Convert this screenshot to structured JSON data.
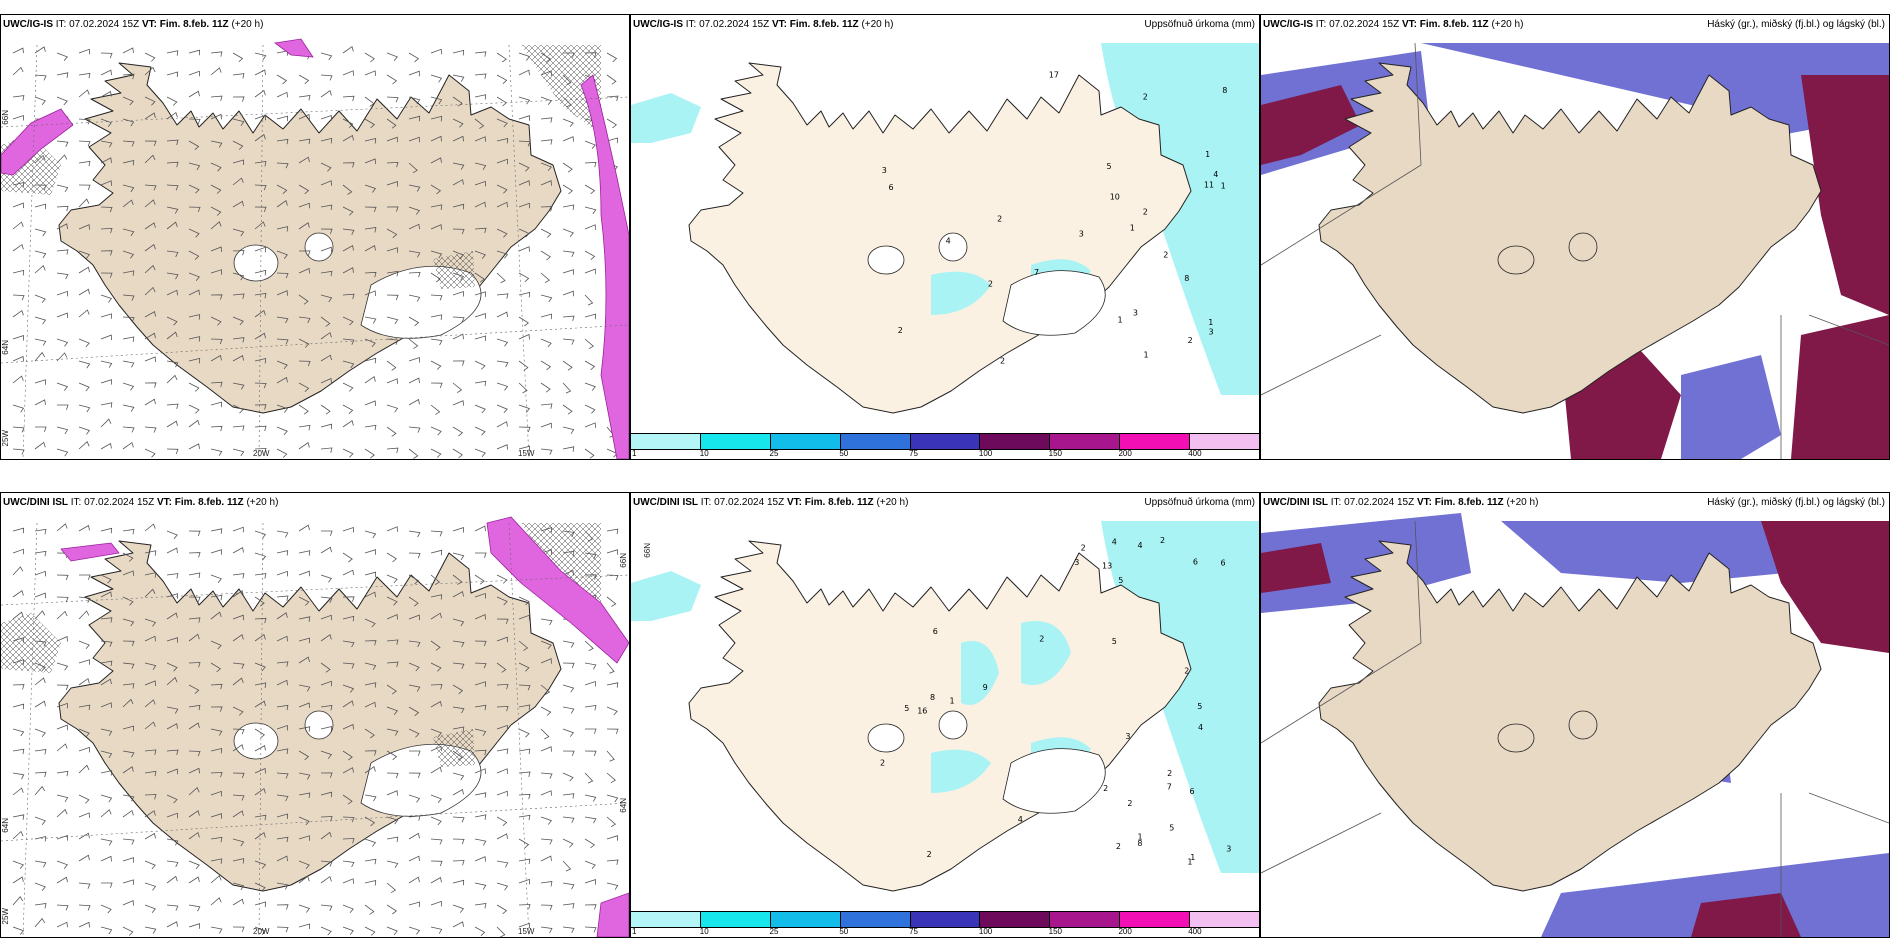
{
  "colors": {
    "land": "#e8d9c5",
    "land_light": "#fbf1e3",
    "sea": "#ffffff",
    "wind_barb": "#555555",
    "ice_pink": "#e066e0",
    "precip_light": "#aaf3f5",
    "cloud_high": "#5858cc",
    "cloud_mid": "#4a87e6",
    "cloud_low": "#801848"
  },
  "panels": [
    {
      "model": "UWC/IG-IS",
      "it_label": "IT:",
      "it": "07.02.2024 15Z",
      "vt_label": "VT:",
      "vt": "Fim. 8.feb. 11Z",
      "lead": "(+20 h)",
      "right_label": ""
    },
    {
      "model": "UWC/IG-IS",
      "it_label": "IT:",
      "it": "07.02.2024 15Z",
      "vt_label": "VT:",
      "vt": "Fim. 8.feb. 11Z",
      "lead": "(+20 h)",
      "right_label": "Uppsöfnuð úrkoma (mm)"
    },
    {
      "model": "UWC/IG-IS",
      "it_label": "IT:",
      "it": "07.02.2024 15Z",
      "vt_label": "VT:",
      "vt": "Fim. 8.feb. 11Z",
      "lead": "(+20 h)",
      "right_label": "Háský (gr.), miðský (fj.bl.) og lágský (bl.)"
    },
    {
      "model": "UWC/DINI ISL",
      "it_label": "IT:",
      "it": "07.02.2024 15Z",
      "vt_label": "VT:",
      "vt": "Fim. 8.feb. 11Z",
      "lead": "(+20 h)",
      "right_label": ""
    },
    {
      "model": "UWC/DINI ISL",
      "it_label": "IT:",
      "it": "07.02.2024 15Z",
      "vt_label": "VT:",
      "vt": "Fim. 8.feb. 11Z",
      "lead": "(+20 h)",
      "right_label": "Uppsöfnuð úrkoma (mm)"
    },
    {
      "model": "UWC/DINI ISL",
      "it_label": "IT:",
      "it": "07.02.2024 15Z",
      "vt_label": "VT:",
      "vt": "Fim. 8.feb. 11Z",
      "lead": "(+20 h)",
      "right_label": "Háský (gr.), miðský (fj.bl.) og lágský (bl.)"
    }
  ],
  "grid_labels": {
    "lon_a": "20W",
    "lon_b": "15W",
    "lat_66": "66N",
    "lat_64": "64N",
    "lat_25": "25W"
  },
  "legend": {
    "ticks": [
      "1",
      "10",
      "25",
      "50",
      "75",
      "100",
      "150",
      "200",
      "400"
    ],
    "colors": [
      "#b4f5f7",
      "#17e6ec",
      "#13bdea",
      "#2f72dc",
      "#3a35b8",
      "#6e0a5b",
      "#a8168e",
      "#f20fb4",
      "#f3bff0"
    ]
  },
  "precip_numbers_top": [
    "2",
    "2",
    "3",
    "3",
    "4",
    "2",
    "3",
    "2",
    "2",
    "2",
    "1",
    "5",
    "4",
    "8",
    "11",
    "17",
    "10",
    "8",
    "7",
    "1",
    "1",
    "2",
    "1",
    "3",
    "2",
    "1",
    "1",
    "6"
  ],
  "precip_numbers_bottom": [
    "2",
    "1",
    "1",
    "4",
    "4",
    "5",
    "5",
    "3",
    "2",
    "6",
    "6",
    "5",
    "8",
    "7",
    "6",
    "9",
    "5",
    "8",
    "16",
    "13",
    "6",
    "2",
    "2",
    "2",
    "2",
    "3",
    "2",
    "2",
    "4",
    "4",
    "1",
    "1",
    "2",
    "3",
    "2",
    "5"
  ]
}
